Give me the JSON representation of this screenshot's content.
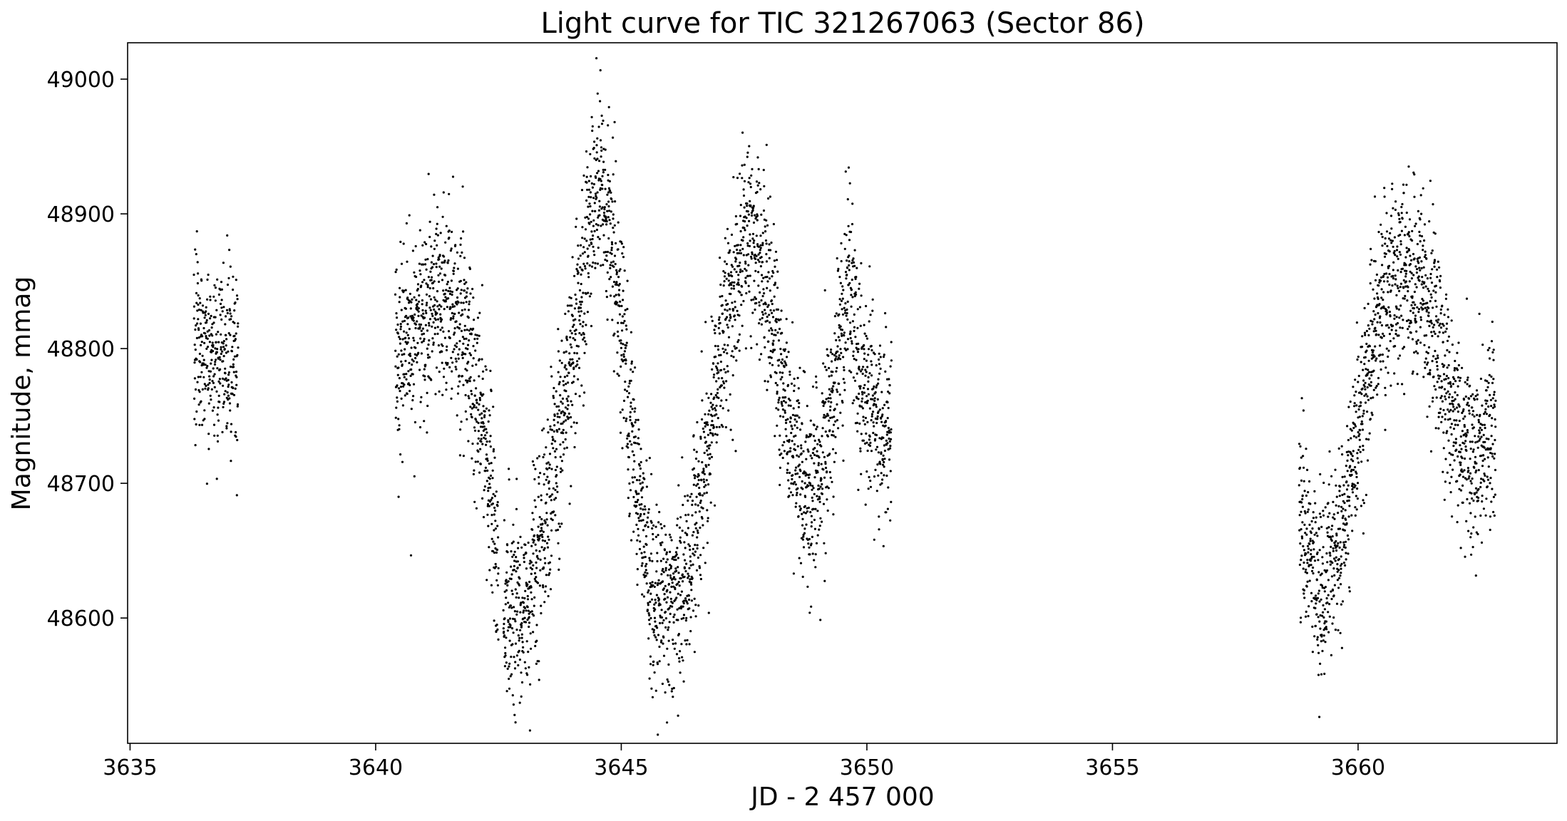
{
  "chart_data": {
    "type": "scatter",
    "title": "Light curve for TIC 321267063 (Sector 86)",
    "xlabel": "JD - 2 457 000",
    "ylabel": "Magnitude, mmag",
    "xlim": [
      3634.95,
      3664.05
    ],
    "ylim": [
      48507,
      49027
    ],
    "x_ticks": [
      3635,
      3640,
      3645,
      3650,
      3655,
      3660
    ],
    "y_ticks": [
      48600,
      48700,
      48800,
      48900,
      49000
    ],
    "grid": false,
    "legend": "none",
    "marker_color": "#000000",
    "trend_knots": [
      [
        3636.3,
        48805
      ],
      [
        3637.1,
        48790
      ],
      [
        3640.4,
        48790
      ],
      [
        3640.9,
        48815
      ],
      [
        3641.4,
        48840
      ],
      [
        3641.8,
        48810
      ],
      [
        3642.2,
        48740
      ],
      [
        3642.6,
        48620
      ],
      [
        3643.0,
        48600
      ],
      [
        3643.5,
        48680
      ],
      [
        3644.0,
        48790
      ],
      [
        3644.5,
        48925
      ],
      [
        3644.8,
        48890
      ],
      [
        3645.2,
        48740
      ],
      [
        3645.6,
        48620
      ],
      [
        3646.0,
        48605
      ],
      [
        3646.4,
        48640
      ],
      [
        3646.9,
        48760
      ],
      [
        3647.5,
        48890
      ],
      [
        3647.9,
        48860
      ],
      [
        3648.3,
        48770
      ],
      [
        3648.7,
        48690
      ],
      [
        3649.0,
        48700
      ],
      [
        3649.3,
        48760
      ],
      [
        3649.6,
        48850
      ],
      [
        3649.9,
        48770
      ],
      [
        3650.2,
        48750
      ],
      [
        3650.5,
        48740
      ],
      [
        3658.8,
        48680
      ],
      [
        3659.2,
        48620
      ],
      [
        3659.6,
        48650
      ],
      [
        3660.1,
        48760
      ],
      [
        3660.5,
        48840
      ],
      [
        3661.0,
        48860
      ],
      [
        3661.5,
        48830
      ],
      [
        3661.9,
        48750
      ],
      [
        3662.3,
        48720
      ],
      [
        3662.8,
        48750
      ]
    ],
    "segments": [
      [
        3636.3,
        3637.2
      ],
      [
        3640.4,
        3642.5
      ],
      [
        3642.6,
        3650.5
      ],
      [
        3658.8,
        3662.8
      ]
    ],
    "scatter_mmag": 35
  }
}
